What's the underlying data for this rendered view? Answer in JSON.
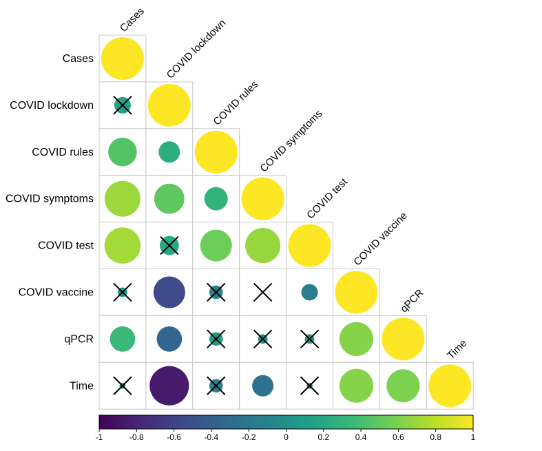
{
  "chart_data": {
    "type": "heatmap",
    "style": "correlation-circle-lower-triangle",
    "variables": [
      "Cases",
      "COVID lockdown",
      "COVID rules",
      "COVID symptoms",
      "COVID test",
      "COVID vaccine",
      "qPCR",
      "Time"
    ],
    "correlations": [
      [
        1.0,
        null,
        null,
        null,
        null,
        null,
        null,
        null
      ],
      [
        0.15,
        1.0,
        null,
        null,
        null,
        null,
        null,
        null
      ],
      [
        0.45,
        0.25,
        1.0,
        null,
        null,
        null,
        null,
        null
      ],
      [
        0.7,
        0.5,
        0.3,
        1.0,
        null,
        null,
        null,
        null
      ],
      [
        0.72,
        0.2,
        0.55,
        0.68,
        1.0,
        null,
        null,
        null
      ],
      [
        0.05,
        -0.55,
        -0.1,
        0.0,
        -0.15,
        1.0,
        null,
        null
      ],
      [
        0.35,
        -0.35,
        0.1,
        0.05,
        0.05,
        0.63,
        1.0,
        null
      ],
      [
        0.02,
        -0.85,
        -0.1,
        -0.25,
        0.02,
        0.63,
        0.6,
        1.0
      ]
    ],
    "not_significant": [
      [
        1,
        0
      ],
      [
        4,
        1
      ],
      [
        5,
        0
      ],
      [
        5,
        2
      ],
      [
        5,
        3
      ],
      [
        6,
        2
      ],
      [
        6,
        3
      ],
      [
        6,
        4
      ],
      [
        7,
        0
      ],
      [
        7,
        2
      ],
      [
        7,
        4
      ]
    ],
    "colorbar": {
      "range": [
        -1,
        1
      ],
      "ticks": [
        "-1",
        "-0.8",
        "-0.6",
        "-0.4",
        "-0.2",
        "0",
        "0.2",
        "0.4",
        "0.6",
        "0.8",
        "1"
      ],
      "colormap": "viridis",
      "stops": [
        "#440154",
        "#482878",
        "#3e4989",
        "#31688e",
        "#26828e",
        "#1f9e89",
        "#35b779",
        "#6ece58",
        "#b5de2b",
        "#fde725"
      ]
    },
    "title": "",
    "xlabel": "",
    "ylabel": "",
    "legend": "bottom"
  }
}
